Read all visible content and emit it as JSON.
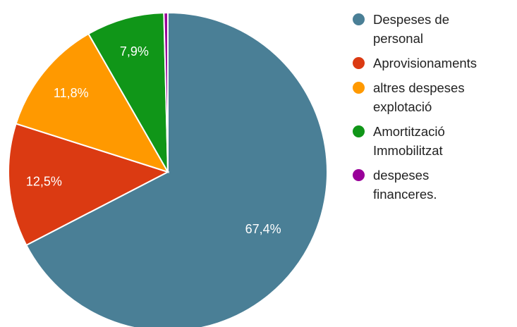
{
  "chart_data": {
    "type": "pie",
    "title": "",
    "start_angle_deg": 0,
    "direction": "clockwise",
    "legend_position": "right",
    "slices": [
      {
        "label": "Despeses de\npersonal",
        "value": 67.4,
        "value_label": "67,4%",
        "color": "#4a7f96"
      },
      {
        "label": "Aprovisionaments",
        "value": 12.5,
        "value_label": "12,5%",
        "color": "#db3a12"
      },
      {
        "label": "altres despeses\nexplotació",
        "value": 11.8,
        "value_label": "11,8%",
        "color": "#ff9900"
      },
      {
        "label": "Amortització\nImmobilitzat",
        "value": 7.9,
        "value_label": "7,9%",
        "color": "#109618"
      },
      {
        "label": "despeses\nfinanceres.",
        "value": 0.4,
        "value_label": "",
        "color": "#990099"
      }
    ]
  }
}
